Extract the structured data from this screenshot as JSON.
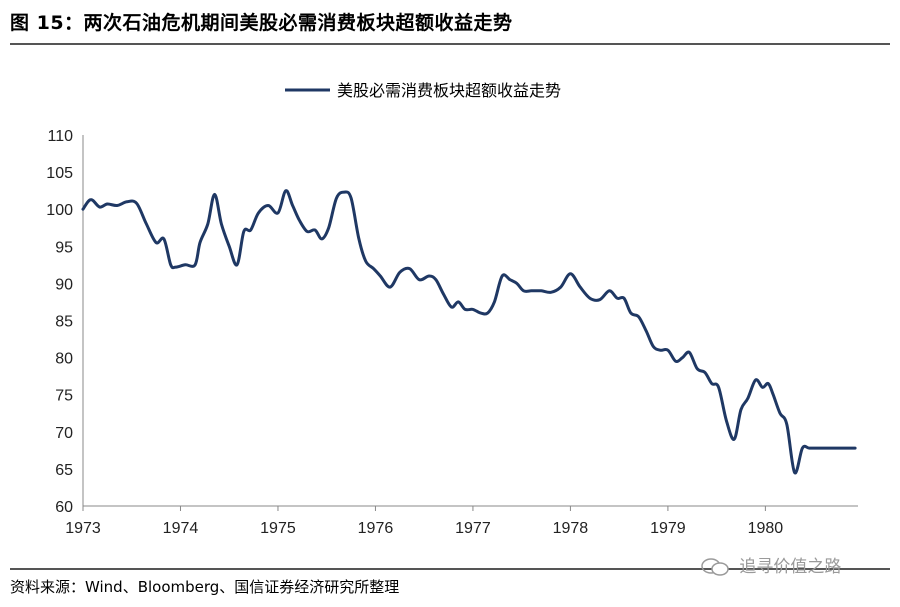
{
  "figure": {
    "title": "图 15：两次石油危机期间美股必需消费板块超额收益走势",
    "source": "资料来源：Wind、Bloomberg、国信证券经济研究所整理",
    "watermark": "追寻价值之路"
  },
  "chart_data": {
    "type": "line",
    "title": "",
    "xlabel": "",
    "ylabel": "",
    "xlim": [
      1973,
      1980.95
    ],
    "ylim": [
      60,
      110
    ],
    "yticks": [
      60,
      65,
      70,
      75,
      80,
      85,
      90,
      95,
      100,
      105,
      110
    ],
    "xticks": [
      "1973",
      "1974",
      "1975",
      "1976",
      "1977",
      "1978",
      "1979",
      "1980"
    ],
    "legend_position": "top-center",
    "grid": false,
    "line_color": "#1f3864",
    "series": [
      {
        "name": "美股必需消费板块超额收益走势",
        "x": [
          1973.0,
          1973.08,
          1973.17,
          1973.25,
          1973.35,
          1973.45,
          1973.55,
          1973.65,
          1973.75,
          1973.83,
          1973.9,
          1973.95,
          1974.05,
          1974.15,
          1974.2,
          1974.28,
          1974.35,
          1974.42,
          1974.5,
          1974.58,
          1974.65,
          1974.72,
          1974.8,
          1974.9,
          1975.0,
          1975.08,
          1975.15,
          1975.22,
          1975.3,
          1975.38,
          1975.45,
          1975.52,
          1975.6,
          1975.68,
          1975.75,
          1975.83,
          1975.9,
          1975.98,
          1976.05,
          1976.15,
          1976.25,
          1976.35,
          1976.45,
          1976.55,
          1976.62,
          1976.7,
          1976.78,
          1976.85,
          1976.92,
          1977.0,
          1977.08,
          1977.15,
          1977.22,
          1977.3,
          1977.38,
          1977.45,
          1977.52,
          1977.6,
          1977.7,
          1977.8,
          1977.9,
          1978.0,
          1978.1,
          1978.2,
          1978.3,
          1978.4,
          1978.48,
          1978.55,
          1978.62,
          1978.7,
          1978.78,
          1978.85,
          1978.92,
          1979.0,
          1979.08,
          1979.15,
          1979.22,
          1979.3,
          1979.38,
          1979.45,
          1979.52,
          1979.6,
          1979.68,
          1979.75,
          1979.82,
          1979.9,
          1979.97,
          1980.03,
          1980.08,
          1980.15,
          1980.22,
          1980.3,
          1980.38,
          1980.45,
          1980.55,
          1980.62,
          1980.7,
          1980.78,
          1980.85,
          1980.92
        ],
        "values": [
          100.0,
          101.3,
          100.3,
          100.7,
          100.5,
          101.0,
          100.8,
          98.0,
          95.5,
          96.0,
          92.5,
          92.2,
          92.5,
          92.5,
          95.5,
          98.0,
          102.0,
          98.0,
          95.0,
          92.5,
          97.0,
          97.2,
          99.5,
          100.5,
          99.5,
          102.5,
          100.5,
          98.5,
          97.0,
          97.2,
          96.0,
          97.5,
          101.5,
          102.3,
          101.5,
          96.0,
          93.0,
          92.0,
          91.0,
          89.5,
          91.5,
          92.0,
          90.5,
          91.0,
          90.5,
          88.5,
          86.8,
          87.5,
          86.5,
          86.5,
          86.0,
          86.0,
          87.5,
          91.0,
          90.5,
          90.0,
          89.0,
          89.0,
          89.0,
          88.8,
          89.5,
          91.3,
          89.5,
          88.0,
          87.8,
          89.0,
          88.0,
          88.0,
          86.0,
          85.5,
          83.5,
          81.5,
          81.0,
          81.0,
          79.5,
          80.0,
          80.7,
          78.5,
          78.0,
          76.5,
          76.0,
          71.5,
          69.0,
          73.0,
          74.5,
          77.0,
          76.0,
          76.5,
          75.0,
          72.5,
          71.0,
          64.5,
          67.8,
          67.8,
          67.8,
          67.8,
          67.8,
          67.8,
          67.8,
          67.8
        ]
      }
    ]
  }
}
